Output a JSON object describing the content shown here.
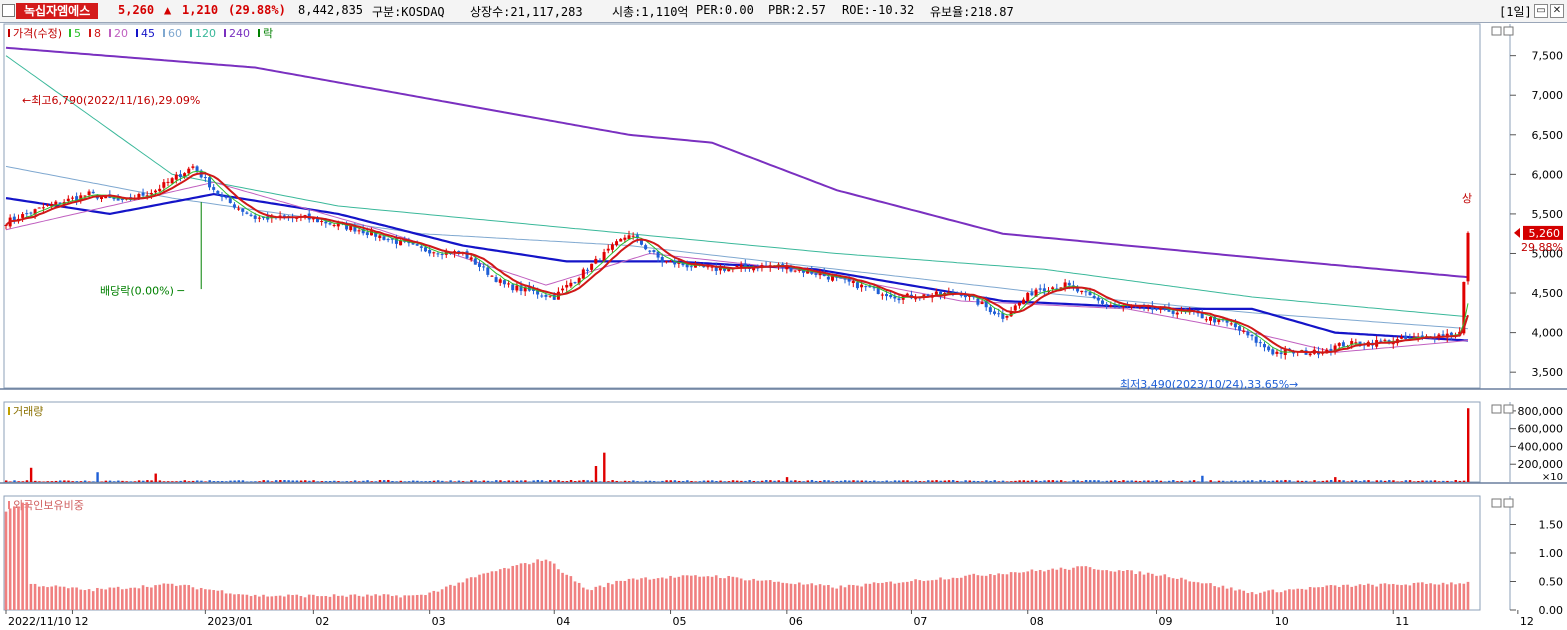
{
  "header": {
    "stock_name": "녹십자엠에스",
    "price": "5,260",
    "change": "1,210",
    "change_pct": "(29.88%)",
    "volume": "8,442,835",
    "market": "구분:KOSDAQ",
    "listed_shares": "상장수:21,117,283",
    "market_cap": "시총:1,110억",
    "per": "PER:0.00",
    "pbr": "PBR:2.57",
    "roe": "ROE:-10.32",
    "float_ratio": "유보율:218.87",
    "period": "[1일]",
    "btn_min": "▭",
    "btn_close": "✕"
  },
  "colors": {
    "up": "#e00000",
    "down": "#1f5fd6",
    "ma5": "#2bbf2b",
    "ma8": "#d01818",
    "ma20": "#c060c0",
    "ma45": "#1414c8",
    "ma60": "#7fa8d0",
    "ma120": "#3ab89a",
    "ma240": "#7a30c0",
    "foreign": "#f08080",
    "axis_text": "#000000"
  },
  "price_panel": {
    "legend": [
      {
        "label": "가격(수정)",
        "color": "#c00000"
      },
      {
        "label": "5",
        "color": "#2bbf2b"
      },
      {
        "label": "8",
        "color": "#d01818"
      },
      {
        "label": "20",
        "color": "#c060c0"
      },
      {
        "label": "45",
        "color": "#1414c8"
      },
      {
        "label": "60",
        "color": "#7fa8d0"
      },
      {
        "label": "120",
        "color": "#3ab89a"
      },
      {
        "label": "240",
        "color": "#7a30c0"
      },
      {
        "label": "락",
        "color": "#008000"
      }
    ],
    "annotations": {
      "high": "최고6,790(2022/11/16),29.09%",
      "low": "최저3,490(2023/10/24),33.65%",
      "dividend": "배당락(0.00%)",
      "limit_up": "상",
      "last_price": "5,260",
      "last_pct": "29.88%"
    },
    "yticks": [
      "7,500",
      "7,000",
      "6,500",
      "6,000",
      "5,500",
      "5,000",
      "4,500",
      "4,000",
      "3,500"
    ]
  },
  "volume_panel": {
    "legend": "거래량",
    "yticks": [
      "800,000",
      "600,000",
      "400,000",
      "200,000"
    ],
    "unit": "×10"
  },
  "foreign_panel": {
    "legend": "외국인보유비중",
    "yticks": [
      "1.50",
      "1.00",
      "0.50",
      "0.00"
    ]
  },
  "xaxis": [
    "2022/11/10",
    "12",
    "2023/01",
    "02",
    "03",
    "04",
    "05",
    "06",
    "07",
    "08",
    "09",
    "10",
    "11",
    "12"
  ],
  "chart_data": {
    "type": "candlestick",
    "price_range": [
      3300,
      7900
    ],
    "volume_range": [
      0,
      900000
    ],
    "foreign_range": [
      0,
      2.0
    ],
    "anchors": {
      "close": [
        [
          0,
          5400
        ],
        [
          10,
          5600
        ],
        [
          20,
          5750
        ],
        [
          28,
          5650
        ],
        [
          36,
          5800
        ],
        [
          45,
          6100
        ],
        [
          52,
          5700
        ],
        [
          60,
          5450
        ],
        [
          72,
          5450
        ],
        [
          85,
          5300
        ],
        [
          100,
          5050
        ],
        [
          110,
          5000
        ],
        [
          120,
          4600
        ],
        [
          132,
          4450
        ],
        [
          142,
          4900
        ],
        [
          150,
          5250
        ],
        [
          158,
          4900
        ],
        [
          170,
          4800
        ],
        [
          185,
          4850
        ],
        [
          195,
          4750
        ],
        [
          205,
          4600
        ],
        [
          215,
          4450
        ],
        [
          230,
          4500
        ],
        [
          240,
          4200
        ],
        [
          248,
          4550
        ],
        [
          255,
          4600
        ],
        [
          265,
          4350
        ],
        [
          275,
          4300
        ],
        [
          285,
          4250
        ],
        [
          295,
          4100
        ],
        [
          305,
          3750
        ],
        [
          315,
          3750
        ],
        [
          322,
          3850
        ],
        [
          335,
          3900
        ],
        [
          350,
          4000
        ],
        [
          352,
          5260
        ]
      ],
      "ma240": [
        [
          0,
          7600
        ],
        [
          60,
          7350
        ],
        [
          150,
          6500
        ],
        [
          170,
          6400
        ],
        [
          200,
          5800
        ],
        [
          240,
          5250
        ],
        [
          300,
          4950
        ],
        [
          352,
          4700
        ]
      ],
      "ma120": [
        [
          0,
          7500
        ],
        [
          40,
          6000
        ],
        [
          80,
          5600
        ],
        [
          150,
          5250
        ],
        [
          200,
          5000
        ],
        [
          250,
          4800
        ],
        [
          300,
          4450
        ],
        [
          352,
          4200
        ]
      ],
      "ma60": [
        [
          0,
          6100
        ],
        [
          40,
          5700
        ],
        [
          100,
          5250
        ],
        [
          150,
          5100
        ],
        [
          200,
          4800
        ],
        [
          250,
          4500
        ],
        [
          300,
          4250
        ],
        [
          352,
          4050
        ]
      ],
      "ma45": [
        [
          0,
          5700
        ],
        [
          25,
          5500
        ],
        [
          50,
          5750
        ],
        [
          80,
          5500
        ],
        [
          110,
          5100
        ],
        [
          135,
          4900
        ],
        [
          160,
          4900
        ],
        [
          195,
          4800
        ],
        [
          240,
          4400
        ],
        [
          280,
          4300
        ],
        [
          300,
          4300
        ],
        [
          320,
          4000
        ],
        [
          352,
          3900
        ]
      ],
      "ma20": [
        [
          0,
          5300
        ],
        [
          50,
          5900
        ],
        [
          90,
          5300
        ],
        [
          130,
          4600
        ],
        [
          155,
          5000
        ],
        [
          190,
          4800
        ],
        [
          230,
          4400
        ],
        [
          270,
          4300
        ],
        [
          300,
          4000
        ],
        [
          320,
          3750
        ],
        [
          352,
          3900
        ]
      ],
      "foreign": [
        [
          0,
          1.75
        ],
        [
          5,
          1.9
        ],
        [
          6,
          0.45
        ],
        [
          20,
          0.35
        ],
        [
          40,
          0.45
        ],
        [
          60,
          0.25
        ],
        [
          80,
          0.25
        ],
        [
          100,
          0.25
        ],
        [
          116,
          0.65
        ],
        [
          130,
          0.9
        ],
        [
          140,
          0.35
        ],
        [
          150,
          0.55
        ],
        [
          170,
          0.6
        ],
        [
          200,
          0.4
        ],
        [
          240,
          0.65
        ],
        [
          260,
          0.75
        ],
        [
          280,
          0.6
        ],
        [
          300,
          0.3
        ],
        [
          320,
          0.42
        ],
        [
          352,
          0.48
        ]
      ],
      "volume_spikes": [
        [
          6,
          160000
        ],
        [
          22,
          110000
        ],
        [
          36,
          95000
        ],
        [
          142,
          180000
        ],
        [
          144,
          330000
        ],
        [
          188,
          55000
        ],
        [
          288,
          70000
        ],
        [
          320,
          55000
        ],
        [
          352,
          830000
        ]
      ]
    },
    "n_days": 353,
    "last_close": 5260,
    "high": 6790,
    "low": 3490
  }
}
